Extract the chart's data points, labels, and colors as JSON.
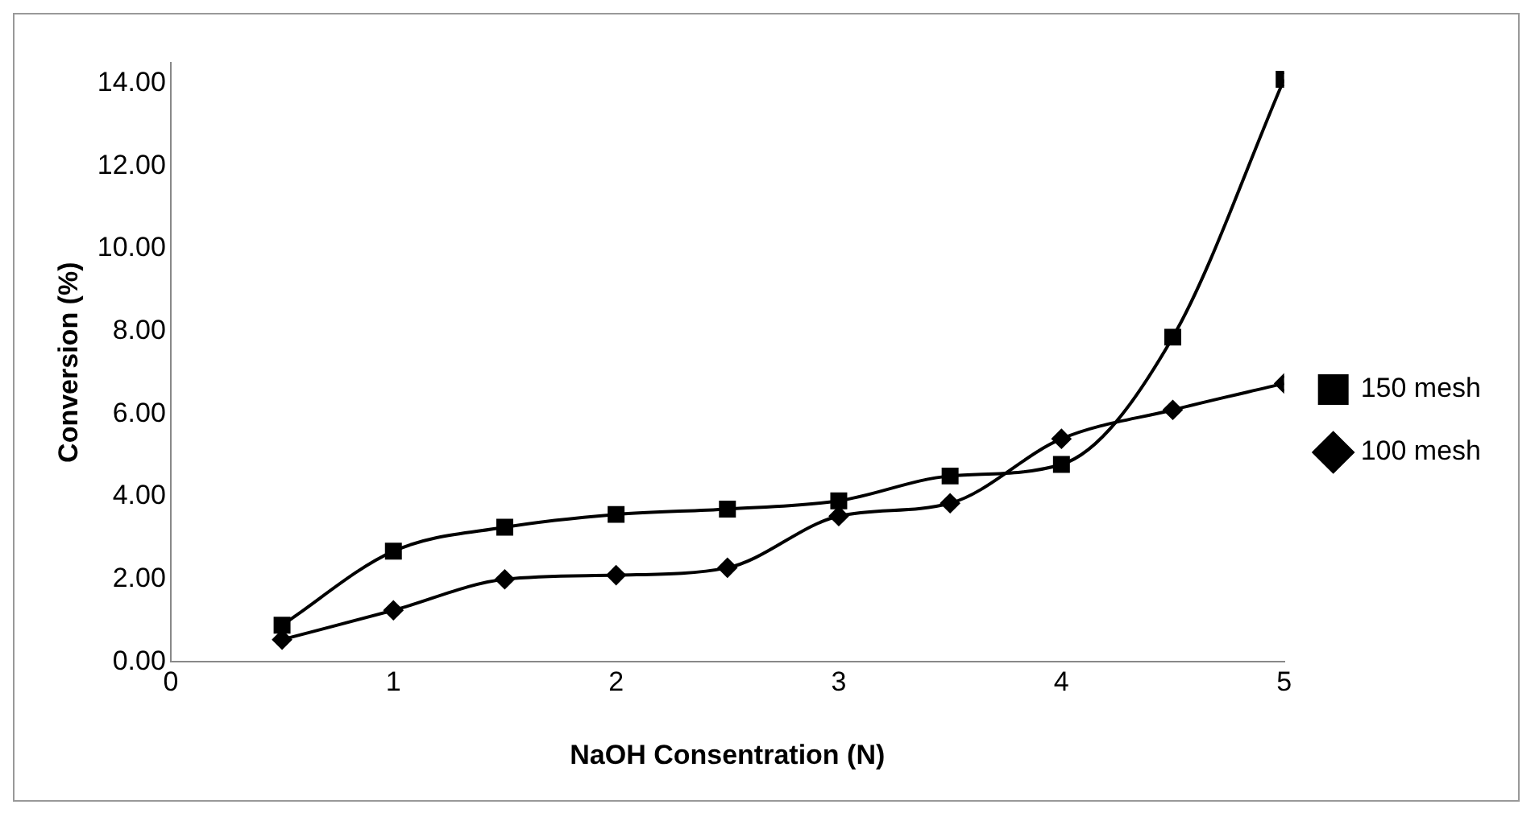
{
  "chart_data": {
    "type": "line",
    "xlabel": "NaOH Consentration (N)",
    "ylabel": "Conversion (%)",
    "x": [
      0.5,
      1,
      1.5,
      2,
      2.5,
      3,
      3.5,
      4,
      4.5,
      5
    ],
    "series": [
      {
        "name": "150 mesh",
        "color": "#000000",
        "marker": "square",
        "values": [
          0.89,
          2.68,
          3.26,
          3.57,
          3.7,
          3.9,
          4.5,
          4.78,
          7.86,
          14.1
        ]
      },
      {
        "name": "100 mesh",
        "color": "#000000",
        "marker": "diamond",
        "values": [
          0.54,
          1.25,
          2.0,
          2.1,
          2.28,
          3.53,
          3.84,
          5.4,
          6.1,
          6.74
        ]
      }
    ],
    "xlim": [
      0,
      5
    ],
    "xticks": [
      0,
      1,
      2,
      3,
      4,
      5
    ],
    "ylim": [
      0,
      14.5
    ],
    "yticks": [
      {
        "value": 0,
        "label": "0.00"
      },
      {
        "value": 2,
        "label": "2.00"
      },
      {
        "value": 4,
        "label": "4.00"
      },
      {
        "value": 6,
        "label": "6.00"
      },
      {
        "value": 8,
        "label": "8.00"
      },
      {
        "value": 10,
        "label": "10.00"
      },
      {
        "value": 12,
        "label": "12.00"
      },
      {
        "value": 14,
        "label": "14.00"
      }
    ],
    "grid": false,
    "legend": "right",
    "line_style": "solid"
  }
}
